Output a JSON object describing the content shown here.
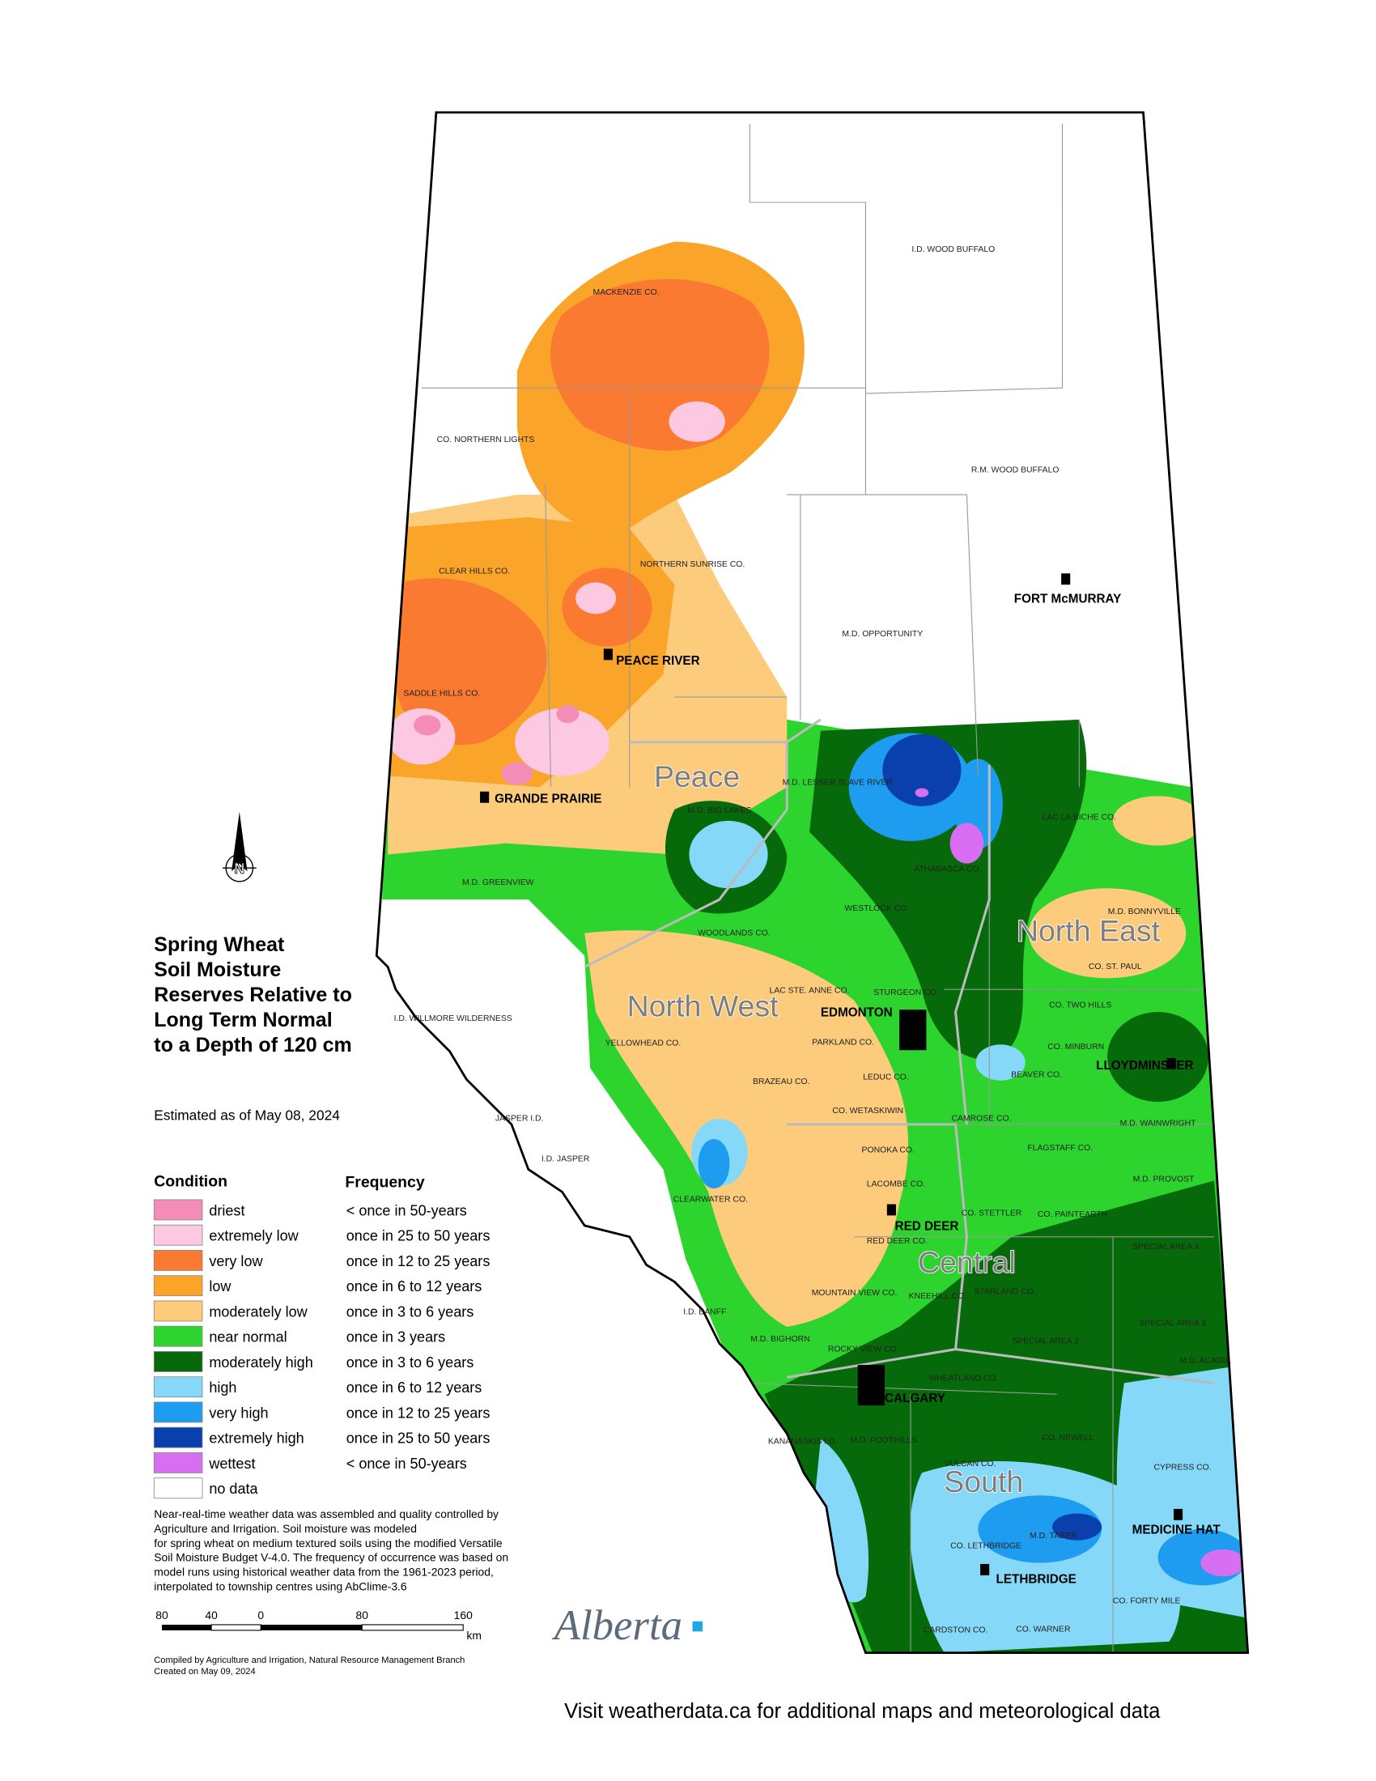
{
  "title": [
    "Spring Wheat",
    "Soil Moisture",
    "Reserves Relative to",
    "Long Term Normal",
    "to a Depth of 120 cm"
  ],
  "estimate": "Estimated as of May 08, 2024",
  "legend": {
    "condition_header": "Condition",
    "frequency_header": "Frequency",
    "items": [
      {
        "label": "driest",
        "frequency": "< once in 50-years",
        "color": "#f48cb8"
      },
      {
        "label": "extremely low",
        "frequency": "once in 25 to 50 years",
        "color": "#fcc8e2"
      },
      {
        "label": "very low",
        "frequency": "once in 12 to 25 years",
        "color": "#fa7a32"
      },
      {
        "label": "low",
        "frequency": "once in 6 to 12 years",
        "color": "#fba42a"
      },
      {
        "label": "moderately low",
        "frequency": "once in 3 to 6 years",
        "color": "#fccb7c"
      },
      {
        "label": "near normal",
        "frequency": "once in 3 years",
        "color": "#2ed42e"
      },
      {
        "label": "moderately high",
        "frequency": "once in 3 to 6 years",
        "color": "#066a0a"
      },
      {
        "label": "high",
        "frequency": "once in 6 to 12 years",
        "color": "#86d8f8"
      },
      {
        "label": "very high",
        "frequency": "once in 12 to 25 years",
        "color": "#1e9df0"
      },
      {
        "label": "extremely high",
        "frequency": "once in 25 to 50 years",
        "color": "#0a3fae"
      },
      {
        "label": "wettest",
        "frequency": "< once in 50-years",
        "color": "#d86ef2"
      },
      {
        "label": "no data",
        "frequency": null,
        "color": "#ffffff"
      }
    ]
  },
  "note": [
    "Near-real-time weather data was assembled and quality controlled by",
    "Agriculture and Irrigation.  Soil moisture was modeled",
    "for spring wheat on medium textured soils using the modified Versatile",
    "Soil Moisture Budget V-4.0.  The frequency of occurrence was based on",
    "model runs using historical weather data from the 1961-2023 period,",
    "interpolated to township centres using AbClime-3.6"
  ],
  "scale": {
    "labels": [
      "80",
      "40",
      "0",
      "80",
      "160"
    ],
    "unit": "km"
  },
  "logo": "Alberta",
  "credits": [
    "Compiled by Agriculture and Irrigation, Natural Resource Management Branch",
    "Created on May 09, 2024"
  ],
  "footer": "Visit weatherdata.ca for additional maps and meteorological data",
  "regions": [
    "Peace",
    "North West",
    "North East",
    "Central",
    "South"
  ],
  "cities": [
    "PEACE RIVER",
    "GRANDE PRAIRIE",
    "FORT McMURRAY",
    "EDMONTON",
    "LLOYDMINSTER",
    "RED DEER",
    "CALGARY",
    "MEDICINE HAT",
    "LETHBRIDGE"
  ],
  "municipalities": [
    "I.D. WOOD BUFFALO",
    "R.M. WOOD BUFFALO",
    "MACKENZIE CO.",
    "CO. NORTHERN LIGHTS",
    "CLEAR HILLS CO.",
    "NORTHERN SUNRISE CO.",
    "M.D. OPPORTUNITY",
    "SADDLE HILLS CO.",
    "M.D. LESSER SLAVE RIVER",
    "M.D. BIG LAKES",
    "LAC LA BICHE CO.",
    "M.D. GREENVIEW",
    "ATHABASCA CO.",
    "WESTLOCK CO.",
    "M.D. BONNYVILLE",
    "WOODLANDS CO.",
    "CO. ST. PAUL",
    "LAC STE. ANNE CO.",
    "STURGEON CO.",
    "CO. TWO HILLS",
    "I.D. WILLMORE WILDERNESS",
    "YELLOWHEAD CO.",
    "PARKLAND CO.",
    "CO. MINBURN",
    "BEAVER CO.",
    "LEDUC CO.",
    "BRAZEAU CO.",
    "CO. WETASKIWIN",
    "CAMROSE CO.",
    "JASPER I.D.",
    "M.D. WAINWRIGHT",
    "PONOKA CO.",
    "FLAGSTAFF CO.",
    "I.D. JASPER",
    "M.D. PROVOST",
    "LACOMBE CO.",
    "CLEARWATER CO.",
    "CO. STETTLER",
    "CO. PAINTEARTH",
    "RED DEER CO.",
    "SPECIAL AREA 4",
    "STARLAND CO.",
    "MOUNTAIN VIEW CO.",
    "KNEEHILL CO.",
    "I.D. BANFF",
    "SPECIAL AREA 3",
    "M.D. BIGHORN",
    "SPECIAL AREA 2",
    "ROCKY VIEW CO.",
    "M.D. ACADIA",
    "WHEATLAND CO.",
    "KANANASKIS I.D.",
    "M.D. FOOTHILLS",
    "CO. NEWELL",
    "VULCAN CO.",
    "CYPRESS CO.",
    "M.D. TABER",
    "CO. LETHBRIDGE",
    "CO. FORTY MILE",
    "CARDSTON CO.",
    "CO. WARNER"
  ]
}
